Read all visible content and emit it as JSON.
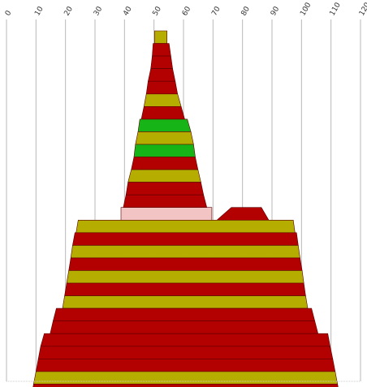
{
  "chart_data": {
    "type": "area",
    "x_axis": {
      "range": [
        0,
        120
      ],
      "ticks": [
        "0",
        "10",
        "20",
        "30",
        "40",
        "50",
        "60",
        "70",
        "80",
        "90",
        "100",
        "110",
        "120"
      ],
      "position": "top",
      "tick_label_rotation": -60
    },
    "grid": true,
    "colors": {
      "red": "#b30000",
      "olive": "#b5ad00",
      "green": "#17b417",
      "pink": "#f2c4c4"
    },
    "bands": [
      {
        "level": 1,
        "color": "olive",
        "shape": [
          [
            50.2,
            54.4
          ],
          [
            50.2,
            54.4
          ]
        ]
      },
      {
        "level": 2,
        "color": "red",
        "shape": [
          [
            49.7,
            55.1
          ],
          [
            49.4,
            55.7
          ]
        ]
      },
      {
        "level": 3,
        "color": "red",
        "shape": [
          [
            49.4,
            55.7
          ],
          [
            48.9,
            56.3
          ]
        ]
      },
      {
        "level": 4,
        "color": "red",
        "shape": [
          [
            48.9,
            56.3
          ],
          [
            48.0,
            57.2
          ]
        ]
      },
      {
        "level": 5,
        "color": "red",
        "shape": [
          [
            48.0,
            57.2
          ],
          [
            47.4,
            58.0
          ]
        ]
      },
      {
        "level": 6,
        "color": "olive",
        "shape": [
          [
            47.4,
            58.0
          ],
          [
            46.6,
            59.2
          ]
        ]
      },
      {
        "level": 7,
        "color": "red",
        "shape": [
          [
            46.6,
            59.2
          ],
          [
            45.7,
            60.4
          ]
        ]
      },
      {
        "level": 8,
        "color": "green",
        "shape": [
          [
            45.2,
            61.3
          ],
          [
            44.6,
            62.5
          ]
        ]
      },
      {
        "level": 9,
        "color": "olive",
        "shape": [
          [
            44.6,
            62.5
          ],
          [
            43.7,
            63.4
          ]
        ]
      },
      {
        "level": 10,
        "color": "green",
        "shape": [
          [
            43.7,
            63.4
          ],
          [
            43.2,
            64.0
          ]
        ]
      },
      {
        "level": 11,
        "color": "red",
        "shape": [
          [
            43.2,
            64.0
          ],
          [
            42.3,
            64.9
          ]
        ]
      },
      {
        "level": 12,
        "color": "olive",
        "shape": [
          [
            42.3,
            64.9
          ],
          [
            41.2,
            65.9
          ]
        ]
      },
      {
        "level": 13,
        "color": "red",
        "shape": [
          [
            41.2,
            65.9
          ],
          [
            40.5,
            66.8
          ]
        ]
      },
      {
        "level": 14,
        "color": "red",
        "shape": [
          [
            40.5,
            66.8
          ],
          [
            39.6,
            67.9
          ]
        ]
      },
      {
        "level": 15,
        "color": "pink",
        "shape": [
          [
            38.8,
            69.6
          ],
          [
            38.8,
            69.6
          ]
        ]
      },
      {
        "level": 15,
        "color": "red",
        "shape": [
          [
            76.2,
            86.4
          ],
          [
            71.3,
            88.9
          ]
        ]
      },
      {
        "level": 16,
        "color": "olive",
        "shape": [
          [
            24.3,
            97.2
          ],
          [
            23.6,
            97.8
          ]
        ]
      },
      {
        "level": 17,
        "color": "red",
        "shape": [
          [
            23.2,
            98.3
          ],
          [
            22.4,
            98.9
          ]
        ]
      },
      {
        "level": 18,
        "color": "olive",
        "shape": [
          [
            22.4,
            98.9
          ],
          [
            21.8,
            99.5
          ]
        ]
      },
      {
        "level": 19,
        "color": "red",
        "shape": [
          [
            21.8,
            99.5
          ],
          [
            21.1,
            100.2
          ]
        ]
      },
      {
        "level": 20,
        "color": "olive",
        "shape": [
          [
            21.1,
            100.2
          ],
          [
            20.4,
            100.8
          ]
        ]
      },
      {
        "level": 21,
        "color": "red",
        "shape": [
          [
            20.4,
            100.8
          ],
          [
            19.7,
            101.4
          ]
        ]
      },
      {
        "level": 22,
        "color": "olive",
        "shape": [
          [
            19.7,
            101.4
          ],
          [
            19.0,
            102.1
          ]
        ]
      },
      {
        "level": 23,
        "color": "red",
        "shape": [
          [
            16.9,
            103.4
          ],
          [
            15.8,
            104.5
          ]
        ]
      },
      {
        "level": 24,
        "color": "red",
        "shape": [
          [
            15.8,
            104.5
          ],
          [
            14.8,
            105.6
          ]
        ]
      },
      {
        "level": 25,
        "color": "red",
        "shape": [
          [
            12.8,
            108.9
          ],
          [
            11.6,
            109.7
          ]
        ]
      },
      {
        "level": 26,
        "color": "red",
        "shape": [
          [
            11.6,
            109.7
          ],
          [
            10.8,
            110.6
          ]
        ]
      },
      {
        "level": 27,
        "color": "red",
        "shape": [
          [
            10.8,
            110.6
          ],
          [
            10.0,
            111.4
          ]
        ]
      },
      {
        "level": 28,
        "color": "olive",
        "shape": [
          [
            10.0,
            111.4
          ],
          [
            9.2,
            112.2
          ]
        ]
      },
      {
        "level": 29,
        "color": "red",
        "shape": [
          [
            9.2,
            112.2
          ],
          [
            8.4,
            113.0
          ]
        ]
      }
    ]
  }
}
